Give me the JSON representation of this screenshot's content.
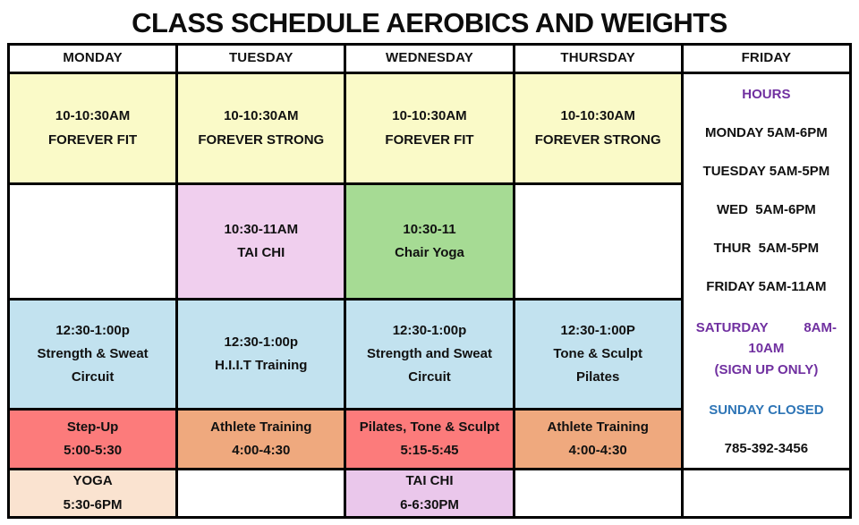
{
  "title": "CLASS SCHEDULE AEROBICS AND WEIGHTS",
  "columns": [
    "MONDAY",
    "TUESDAY",
    "WEDNESDAY",
    "THURSDAY",
    "FRIDAY"
  ],
  "colors": {
    "yellow": "#FAFAC8",
    "pink": "#F0CFEE",
    "green": "#A6DB94",
    "blue": "#C2E2EF",
    "red": "#FC7B7B",
    "orange": "#EFA97E",
    "peach": "#FAE3D0",
    "magenta": "#EAC7EB",
    "white": "#FFFFFF",
    "purple_text": "#7030A0",
    "blue_text": "#2E75B6",
    "black_text": "#111111"
  },
  "schedule": {
    "rows": [
      {
        "cells": [
          {
            "bg": "yellow",
            "lines": [
              "10-10:30AM",
              "FOREVER FIT"
            ]
          },
          {
            "bg": "yellow",
            "lines": [
              "10-10:30AM",
              "FOREVER STRONG"
            ]
          },
          {
            "bg": "yellow",
            "lines": [
              "10-10:30AM",
              "FOREVER FIT"
            ]
          },
          {
            "bg": "yellow",
            "lines": [
              "10-10:30AM",
              "FOREVER STRONG"
            ]
          }
        ]
      },
      {
        "cells": [
          {
            "bg": "white",
            "lines": []
          },
          {
            "bg": "pink",
            "lines": [
              "10:30-11AM",
              "TAI CHI"
            ]
          },
          {
            "bg": "green",
            "lines": [
              "10:30-11",
              "Chair Yoga"
            ]
          },
          {
            "bg": "white",
            "lines": []
          }
        ]
      },
      {
        "cells": [
          {
            "bg": "blue",
            "lines": [
              "12:30-1:00p",
              "Strength & Sweat",
              "Circuit"
            ]
          },
          {
            "bg": "blue",
            "lines": [
              "12:30-1:00p",
              "H.I.I.T Training"
            ]
          },
          {
            "bg": "blue",
            "lines": [
              "12:30-1:00p",
              "Strength and Sweat",
              "Circuit"
            ]
          },
          {
            "bg": "blue",
            "lines": [
              "12:30-1:00P",
              "Tone & Sculpt",
              "Pilates"
            ]
          }
        ]
      },
      {
        "cells": [
          {
            "bg": "red",
            "lines": [
              "Step-Up",
              "5:00-5:30"
            ]
          },
          {
            "bg": "orange",
            "lines": [
              "Athlete Training",
              "4:00-4:30"
            ]
          },
          {
            "bg": "red",
            "lines": [
              "Pilates, Tone & Sculpt",
              "5:15-5:45"
            ]
          },
          {
            "bg": "orange",
            "lines": [
              "Athlete Training",
              "4:00-4:30"
            ]
          }
        ]
      },
      {
        "cells": [
          {
            "bg": "peach",
            "lines": [
              "YOGA",
              "5:30-6PM"
            ]
          },
          {
            "bg": "white",
            "lines": []
          },
          {
            "bg": "magenta",
            "lines": [
              "TAI CHI",
              "6-6:30PM"
            ]
          },
          {
            "bg": "white",
            "lines": []
          }
        ]
      }
    ]
  },
  "info_panel": {
    "title": "HOURS",
    "hours": [
      "MONDAY 5AM-6PM",
      "TUESDAY 5AM-5PM",
      "WED  5AM-6PM",
      "THUR  5AM-5PM",
      "FRIDAY 5AM-11AM"
    ],
    "saturday_left": "SATURDAY",
    "saturday_right": "8AM-",
    "saturday_line2": "10AM",
    "saturday_line3": "(SIGN UP ONLY)",
    "sunday": "SUNDAY CLOSED",
    "phone": "785-392-3456"
  }
}
